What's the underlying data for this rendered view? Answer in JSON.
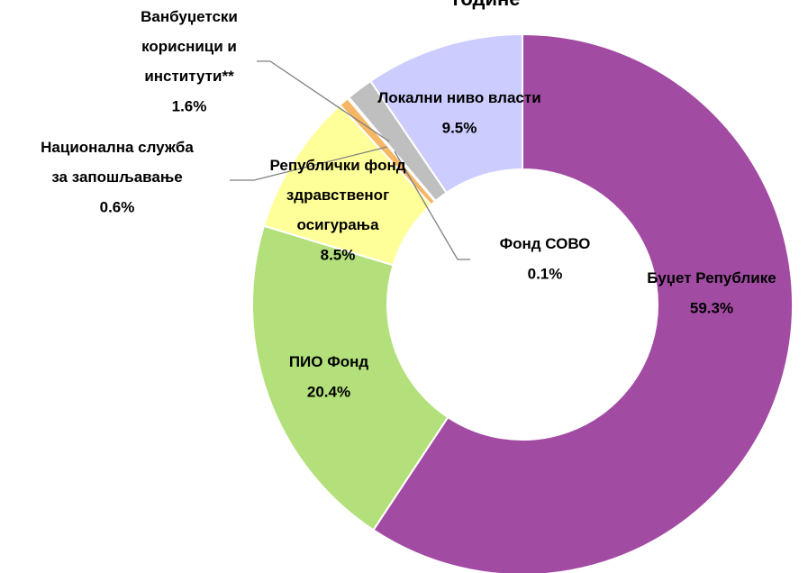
{
  "chart_data": {
    "type": "donut",
    "title": "године",
    "categories": [
      "Буџет Републике",
      "ПИО Фонд",
      "Републички фонд\nздравственог\nосигурања",
      "Национална служба\nза запошљавање",
      "Фонд СОВО",
      "Ванбуџетски\nкорисници и\nинститути**",
      "Локални ниво власти"
    ],
    "values": [
      59.3,
      20.4,
      8.5,
      0.6,
      0.1,
      1.6,
      9.5
    ],
    "value_labels": [
      "59.3%",
      "20.4%",
      "8.5%",
      "0.6%",
      "0.1%",
      "1.6%",
      "9.5%"
    ],
    "colors": [
      "#a24ba3",
      "#b3e07a",
      "#ffff99",
      "#f5b764",
      "#e8a040",
      "#bfbfbf",
      "#ccccff"
    ]
  }
}
